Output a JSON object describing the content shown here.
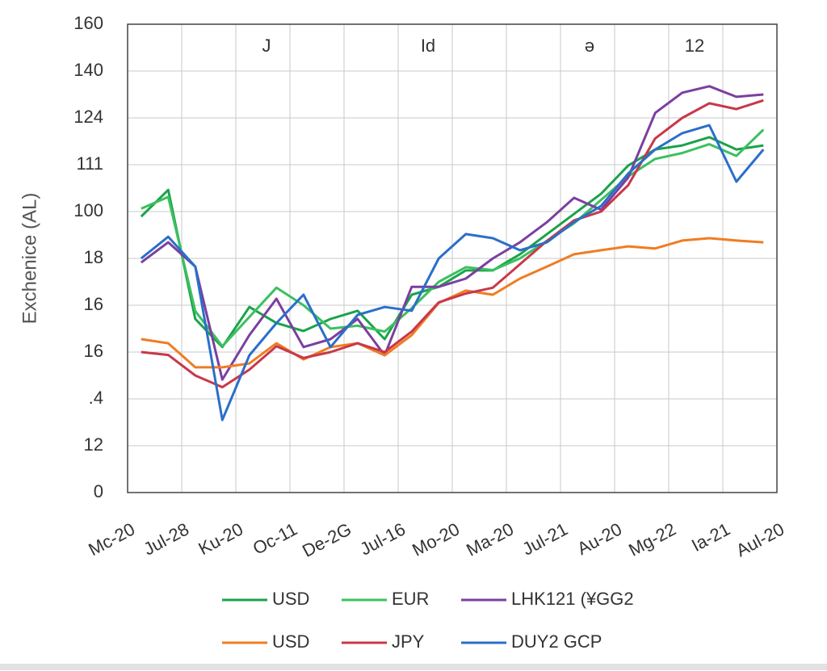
{
  "chart_data": {
    "type": "line",
    "ylabel": "Exchenice (AL)",
    "annotations": [
      "J",
      "Id",
      "ə",
      "12"
    ],
    "x": [
      0.25,
      0.75,
      1.25,
      1.75,
      2.25,
      2.75,
      3.25,
      3.75,
      4.25,
      4.75,
      5.25,
      5.75,
      6.25,
      6.75,
      7.25,
      7.75,
      8.25,
      8.75,
      9.25,
      9.75,
      10.25,
      10.75,
      11.25,
      11.75
    ],
    "xlim": [
      0,
      12
    ],
    "xticks": [
      {
        "value": 0,
        "label": "Mc-20"
      },
      {
        "value": 1,
        "label": "Jul-28"
      },
      {
        "value": 2,
        "label": "Ku-20"
      },
      {
        "value": 3,
        "label": "Oc-11"
      },
      {
        "value": 4,
        "label": "De-2G"
      },
      {
        "value": 5,
        "label": "Jul-16"
      },
      {
        "value": 6,
        "label": "Mo-20"
      },
      {
        "value": 7,
        "label": "Ma-20"
      },
      {
        "value": 8,
        "label": "Jul-21"
      },
      {
        "value": 9,
        "label": "Au-20"
      },
      {
        "value": 10,
        "label": "Mg-22"
      },
      {
        "value": 11,
        "label": "Ia-21"
      },
      {
        "value": 12,
        "label": "Aul-20"
      }
    ],
    "ylim": [
      0,
      160
    ],
    "yticks": [
      0,
      {
        "value": 16,
        "label": "12"
      },
      {
        "value": 32,
        "label": ".4"
      },
      {
        "value": 48,
        "label": "16"
      },
      {
        "value": 64,
        "label": "16"
      },
      {
        "value": 80,
        "label": "18"
      },
      {
        "value": 96,
        "label": "100"
      },
      {
        "value": 112,
        "label": "111"
      },
      {
        "value": 128,
        "label": "124"
      },
      {
        "value": 144,
        "label": "140"
      },
      160
    ],
    "grid": true,
    "series": [
      {
        "name": "USD",
        "color": "#1aa34a",
        "values": [
          94.3,
          103.4,
          59.3,
          49.7,
          63.4,
          57.9,
          55.2,
          59.3,
          62.1,
          52.4,
          67.6,
          70.3,
          75.9,
          75.9,
          81.4,
          88.3,
          95.2,
          102.1,
          111.7,
          117.2,
          118.6,
          121.4,
          117.2,
          118.6
        ]
      },
      {
        "name": "EUR",
        "color": "#3cc060",
        "values": [
          97,
          101,
          62,
          50,
          60,
          70,
          64,
          56,
          57,
          55,
          63,
          72,
          77,
          76,
          80,
          86,
          92,
          100,
          108,
          114,
          116,
          119,
          115,
          124
        ]
      },
      {
        "name": "LHK121 (¥GG2",
        "color": "#7b3fa0",
        "values": [
          78.6,
          85.5,
          77.2,
          38.6,
          53.8,
          66.2,
          49.7,
          52.4,
          59.3,
          46.9,
          70.3,
          70.3,
          73.1,
          80,
          85.5,
          92.4,
          100.7,
          96.6,
          107.6,
          129.7,
          136.6,
          138.8,
          135.2,
          136
        ]
      },
      {
        "name": "USD",
        "color": "#f07c22",
        "values": [
          52.4,
          51,
          42.8,
          42.8,
          44.1,
          51,
          45.5,
          49.7,
          51,
          46.9,
          53.8,
          64.8,
          69,
          67.6,
          73.1,
          77.2,
          81.4,
          82.8,
          84.1,
          83.4,
          86.1,
          86.9,
          86.1,
          85.5
        ]
      },
      {
        "name": "JPY",
        "color": "#c8384a",
        "values": [
          48,
          47,
          40,
          36,
          42,
          50,
          46,
          48,
          51,
          48,
          55,
          65,
          68,
          70,
          78,
          86,
          93,
          96,
          105,
          121,
          128,
          133,
          131,
          134
        ]
      },
      {
        "name": "DUY2 GCP",
        "color": "#2a6fc9",
        "values": [
          80,
          87.4,
          77.2,
          24.8,
          46.9,
          57.9,
          67.6,
          49.7,
          60.7,
          63.4,
          62.1,
          80,
          88.3,
          86.9,
          82.8,
          85.5,
          92.4,
          97.9,
          109,
          117.2,
          122.8,
          125.5,
          106.2,
          117.2
        ]
      }
    ]
  }
}
